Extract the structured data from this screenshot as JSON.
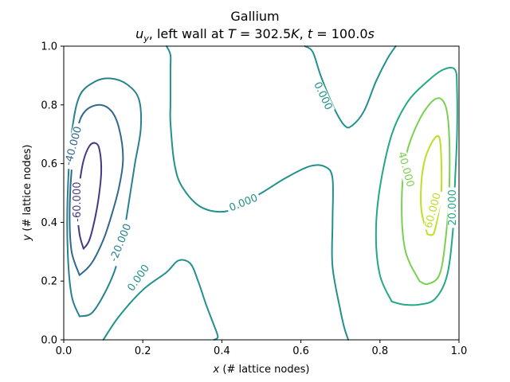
{
  "chart_data": {
    "type": "contour",
    "title": "Gallium",
    "subtitle": "u_y, left wall at T = 302.5K, t = 100.0s",
    "xlabel": "x (# lattice nodes)",
    "ylabel": "y (# lattice nodes)",
    "xlim": [
      0.0,
      1.0
    ],
    "ylim": [
      0.0,
      1.0
    ],
    "xticks": [
      "0.0",
      "0.2",
      "0.4",
      "0.6",
      "0.8",
      "1.0"
    ],
    "yticks": [
      "0.0",
      "0.2",
      "0.4",
      "0.6",
      "0.8",
      "1.0"
    ],
    "grid": false,
    "levels": [
      {
        "level": -60,
        "label": "-60.000",
        "color": "#443a83",
        "label_pos": [
          0.035,
          0.47
        ],
        "label_rot": -90,
        "paths": [
          [
            [
              0.05,
              0.31
            ],
            [
              0.04,
              0.36
            ],
            [
              0.035,
              0.44
            ],
            [
              0.04,
              0.53
            ],
            [
              0.05,
              0.61
            ],
            [
              0.065,
              0.66
            ],
            [
              0.08,
              0.67
            ],
            [
              0.09,
              0.65
            ],
            [
              0.095,
              0.58
            ],
            [
              0.09,
              0.5
            ],
            [
              0.08,
              0.42
            ],
            [
              0.065,
              0.34
            ],
            [
              0.05,
              0.31
            ]
          ]
        ]
      },
      {
        "level": -40,
        "label": "-40.000",
        "color": "#31688e",
        "label_pos": [
          0.025,
          0.66
        ],
        "label_rot": -75,
        "paths": [
          [
            [
              0.04,
              0.22
            ],
            [
              0.02,
              0.3
            ],
            [
              0.015,
              0.42
            ],
            [
              0.02,
              0.58
            ],
            [
              0.035,
              0.72
            ],
            [
              0.055,
              0.78
            ],
            [
              0.09,
              0.8
            ],
            [
              0.12,
              0.78
            ],
            [
              0.14,
              0.72
            ],
            [
              0.15,
              0.62
            ],
            [
              0.14,
              0.52
            ],
            [
              0.12,
              0.42
            ],
            [
              0.1,
              0.34
            ],
            [
              0.07,
              0.26
            ],
            [
              0.04,
              0.22
            ]
          ]
        ]
      },
      {
        "level": -20,
        "label": "-20.000",
        "color": "#26828e",
        "label_pos": [
          0.145,
          0.33
        ],
        "label_rot": -68,
        "paths": [
          [
            [
              0.04,
              0.08
            ],
            [
              0.02,
              0.15
            ],
            [
              0.01,
              0.3
            ],
            [
              0.01,
              0.5
            ],
            [
              0.02,
              0.7
            ],
            [
              0.04,
              0.83
            ],
            [
              0.08,
              0.88
            ],
            [
              0.12,
              0.89
            ],
            [
              0.16,
              0.87
            ],
            [
              0.19,
              0.82
            ],
            [
              0.195,
              0.72
            ],
            [
              0.18,
              0.6
            ],
            [
              0.165,
              0.47
            ],
            [
              0.15,
              0.35
            ],
            [
              0.13,
              0.24
            ],
            [
              0.1,
              0.15
            ],
            [
              0.07,
              0.09
            ],
            [
              0.04,
              0.08
            ]
          ]
        ]
      },
      {
        "level": 0,
        "label": "0.000",
        "color": "#21918c",
        "label_pos": [
          0.19,
          0.21
        ],
        "label_rot": -55,
        "paths": [
          [
            [
              0.26,
              1.0
            ],
            [
              0.27,
              0.97
            ],
            [
              0.27,
              0.92
            ],
            [
              0.27,
              0.86
            ],
            [
              0.27,
              0.8
            ],
            [
              0.27,
              0.74
            ],
            [
              0.28,
              0.6
            ],
            [
              0.3,
              0.52
            ],
            [
              0.35,
              0.45
            ],
            [
              0.42,
              0.44
            ],
            [
              0.5,
              0.5
            ],
            [
              0.56,
              0.55
            ],
            [
              0.62,
              0.59
            ],
            [
              0.66,
              0.59
            ],
            [
              0.68,
              0.55
            ],
            [
              0.68,
              0.4
            ],
            [
              0.68,
              0.25
            ],
            [
              0.7,
              0.1
            ],
            [
              0.71,
              0.04
            ],
            [
              0.72,
              0.0
            ]
          ],
          [
            [
              0.61,
              1.0
            ],
            [
              0.63,
              0.98
            ],
            [
              0.65,
              0.9
            ],
            [
              0.68,
              0.8
            ],
            [
              0.71,
              0.73
            ],
            [
              0.73,
              0.73
            ],
            [
              0.76,
              0.78
            ],
            [
              0.79,
              0.88
            ],
            [
              0.82,
              0.96
            ],
            [
              0.84,
              1.0
            ]
          ],
          [
            [
              0.1,
              0.0
            ],
            [
              0.14,
              0.08
            ],
            [
              0.2,
              0.17
            ],
            [
              0.26,
              0.23
            ],
            [
              0.29,
              0.27
            ],
            [
              0.32,
              0.26
            ],
            [
              0.34,
              0.2
            ],
            [
              0.36,
              0.12
            ],
            [
              0.38,
              0.05
            ],
            [
              0.39,
              0.01
            ],
            [
              0.38,
              0.0
            ]
          ]
        ]
      },
      {
        "level": 20,
        "label": "20.000",
        "color": "#22a884",
        "label_pos": [
          0.985,
          0.45
        ],
        "label_rot": -90,
        "paths": [
          [
            [
              0.83,
              0.13
            ],
            [
              0.8,
              0.22
            ],
            [
              0.79,
              0.36
            ],
            [
              0.8,
              0.52
            ],
            [
              0.83,
              0.7
            ],
            [
              0.87,
              0.81
            ],
            [
              0.92,
              0.88
            ],
            [
              0.96,
              0.92
            ],
            [
              0.99,
              0.92
            ],
            [
              0.995,
              0.85
            ],
            [
              0.995,
              0.7
            ],
            [
              0.99,
              0.54
            ],
            [
              0.985,
              0.38
            ],
            [
              0.97,
              0.22
            ],
            [
              0.94,
              0.14
            ],
            [
              0.9,
              0.12
            ],
            [
              0.86,
              0.12
            ],
            [
              0.83,
              0.13
            ]
          ]
        ]
      },
      {
        "level": 40,
        "label": "40.000",
        "color": "#7ad151",
        "label_pos": [
          0.865,
          0.58
        ],
        "label_rot": 75,
        "paths": [
          [
            [
              0.9,
              0.2
            ],
            [
              0.865,
              0.3
            ],
            [
              0.855,
              0.45
            ],
            [
              0.865,
              0.62
            ],
            [
              0.9,
              0.75
            ],
            [
              0.94,
              0.82
            ],
            [
              0.965,
              0.8
            ],
            [
              0.975,
              0.7
            ],
            [
              0.975,
              0.5
            ],
            [
              0.965,
              0.33
            ],
            [
              0.95,
              0.22
            ],
            [
              0.92,
              0.19
            ],
            [
              0.9,
              0.2
            ]
          ]
        ]
      },
      {
        "level": 60,
        "label": "60.000",
        "color": "#bddf26",
        "label_pos": [
          0.935,
          0.44
        ],
        "label_rot": -75,
        "paths": [
          [
            [
              0.92,
              0.36
            ],
            [
              0.905,
              0.44
            ],
            [
              0.905,
              0.54
            ],
            [
              0.915,
              0.62
            ],
            [
              0.935,
              0.68
            ],
            [
              0.95,
              0.69
            ],
            [
              0.955,
              0.62
            ],
            [
              0.955,
              0.5
            ],
            [
              0.945,
              0.41
            ],
            [
              0.935,
              0.36
            ],
            [
              0.92,
              0.36
            ]
          ]
        ]
      }
    ],
    "extra_labels": [
      {
        "label": "0.000",
        "color": "#21918c",
        "pos": [
          0.455,
          0.465
        ],
        "rot": -22
      },
      {
        "label": "0.000",
        "color": "#21918c",
        "pos": [
          0.655,
          0.83
        ],
        "rot": 65
      }
    ]
  }
}
